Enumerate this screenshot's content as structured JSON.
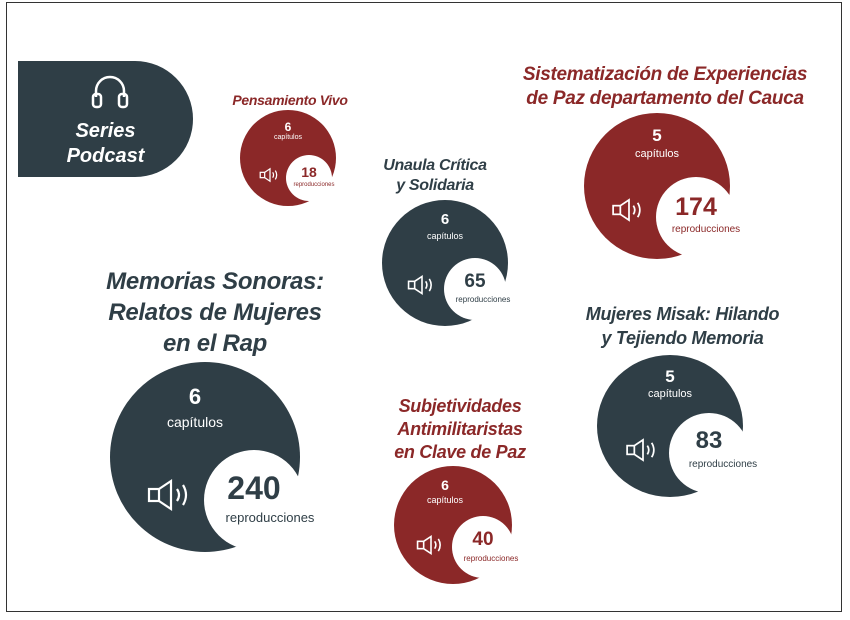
{
  "header": {
    "line1": "Series",
    "line2": "Podcast"
  },
  "podcasts": [
    {
      "title_lines": [
        "Pensamiento Vivo"
      ],
      "chapters": "6",
      "chapters_label": "capítulos",
      "plays": "18",
      "plays_label": "reproducciones",
      "color": "#8b2828"
    },
    {
      "title_lines": [
        "Unaula Crítica",
        "y Solidaria"
      ],
      "chapters": "6",
      "chapters_label": "capítulos",
      "plays": "65",
      "plays_label": "reproducciones",
      "color": "#2f3e46"
    },
    {
      "title_lines": [
        "Sistematización de Experiencias",
        "de Paz departamento del Cauca"
      ],
      "chapters": "5",
      "chapters_label": "capítulos",
      "plays": "174",
      "plays_label": "reproducciones",
      "color": "#8b2828"
    },
    {
      "title_lines": [
        "Memorias Sonoras:",
        "Relatos de Mujeres",
        "en el Rap"
      ],
      "chapters": "6",
      "chapters_label": "capítulos",
      "plays": "240",
      "plays_label": "reproducciones",
      "color": "#2f3e46"
    },
    {
      "title_lines": [
        "Mujeres Misak: Hilando",
        "y Tejiendo Memoria"
      ],
      "chapters": "5",
      "chapters_label": "capítulos",
      "plays": "83",
      "plays_label": "reproducciones",
      "color": "#2f3e46"
    },
    {
      "title_lines": [
        "Subjetividades",
        "Antimilitaristas",
        "en Clave de Paz"
      ],
      "chapters": "6",
      "chapters_label": "capítulos",
      "plays": "40",
      "plays_label": "reproducciones",
      "color": "#8b2828"
    }
  ],
  "icons": {
    "header": "headphones-icon",
    "play": "speaker-icon"
  }
}
